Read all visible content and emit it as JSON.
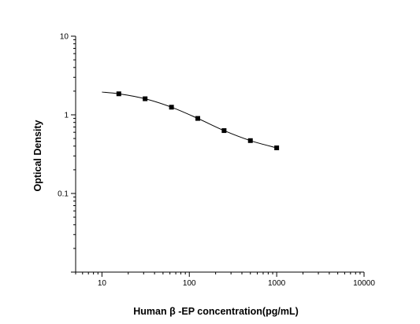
{
  "chart_data": {
    "type": "scatter",
    "xlabel": "Human β -EP concentration(pg/mL)",
    "ylabel": "Optical Density",
    "xscale": "log",
    "yscale": "log",
    "xlim": [
      5,
      10000
    ],
    "ylim": [
      0.01,
      10
    ],
    "xticks": [
      10,
      100,
      1000,
      10000
    ],
    "xtick_labels": [
      "10",
      "100",
      "1000",
      "10000"
    ],
    "yticks": [
      0.1,
      1,
      10
    ],
    "ytick_labels": [
      "0.1",
      "1",
      "10"
    ],
    "grid": false,
    "legend": false,
    "series": [
      {
        "x": [
          15.6,
          31.2,
          62.5,
          125,
          250,
          500,
          1000
        ],
        "y": [
          1.85,
          1.6,
          1.25,
          0.9,
          0.63,
          0.47,
          0.38
        ],
        "marker": "square",
        "fit_curve": true,
        "fit_start_x": 10
      }
    ]
  }
}
